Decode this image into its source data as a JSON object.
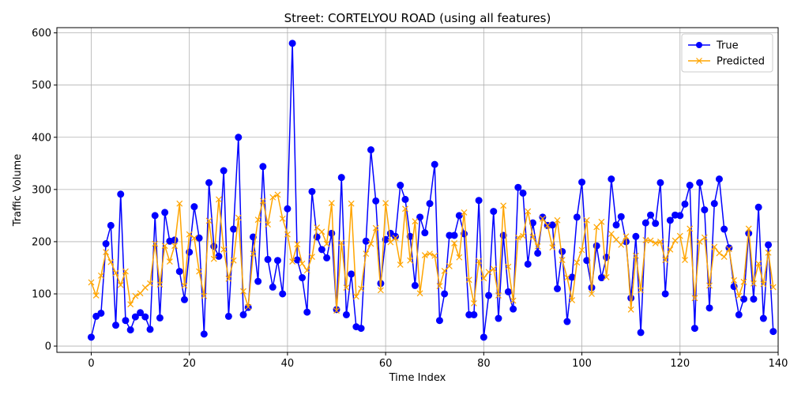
{
  "chart_data": {
    "type": "line",
    "title": "Street: CORTELYOU ROAD (using all features)",
    "xlabel": "Time Index",
    "ylabel": "Traffic Volume",
    "xlim": [
      -7,
      140
    ],
    "ylim": [
      -12,
      610
    ],
    "xticks": [
      0,
      20,
      40,
      60,
      80,
      100,
      120,
      140
    ],
    "yticks": [
      0,
      100,
      200,
      300,
      400,
      500,
      600
    ],
    "grid": true,
    "legend_position": "top-right",
    "colors": {
      "True": "#0000ff",
      "Predicted": "#ffa500"
    },
    "series": [
      {
        "name": "True",
        "marker": "circle",
        "values": [
          17,
          57,
          63,
          196,
          231,
          40,
          291,
          49,
          31,
          56,
          64,
          56,
          32,
          250,
          54,
          256,
          201,
          203,
          143,
          89,
          180,
          267,
          207,
          23,
          313,
          191,
          172,
          336,
          57,
          224,
          400,
          60,
          74,
          209,
          124,
          344,
          166,
          113,
          164,
          100,
          263,
          580,
          165,
          131,
          65,
          296,
          209,
          185,
          169,
          216,
          70,
          323,
          60,
          138,
          37,
          34,
          201,
          376,
          278,
          120,
          204,
          216,
          210,
          308,
          281,
          210,
          116,
          247,
          217,
          273,
          348,
          49,
          100,
          212,
          212,
          250,
          215,
          60,
          60,
          279,
          17,
          97,
          258,
          53,
          212,
          104,
          71,
          304,
          293,
          157,
          236,
          178,
          247,
          231,
          232,
          110,
          181,
          47,
          132,
          247,
          314,
          164,
          112,
          192,
          131,
          170,
          320,
          232,
          248,
          200,
          92,
          210,
          26,
          236,
          251,
          235,
          313,
          100,
          241,
          251,
          250,
          272,
          308,
          34,
          313,
          261,
          73,
          273,
          320,
          224,
          188,
          114,
          60,
          90,
          216,
          90,
          266,
          53,
          194,
          28
        ]
      },
      {
        "name": "Predicted",
        "marker": "x",
        "values": [
          122,
          97,
          135,
          180,
          161,
          140,
          117,
          143,
          80,
          96,
          101,
          112,
          120,
          196,
          118,
          192,
          162,
          192,
          273,
          116,
          214,
          207,
          143,
          96,
          240,
          167,
          281,
          185,
          129,
          164,
          246,
          105,
          75,
          177,
          242,
          278,
          233,
          285,
          290,
          244,
          214,
          162,
          195,
          158,
          145,
          171,
          227,
          219,
          196,
          274,
          68,
          198,
          112,
          273,
          95,
          110,
          177,
          196,
          226,
          107,
          274,
          199,
          207,
          156,
          263,
          164,
          239,
          101,
          174,
          177,
          173,
          115,
          144,
          153,
          197,
          170,
          256,
          127,
          82,
          163,
          130,
          142,
          148,
          97,
          269,
          152,
          87,
          208,
          211,
          258,
          209,
          191,
          244,
          231,
          189,
          241,
          165,
          131,
          88,
          160,
          184,
          241,
          100,
          228,
          238,
          132,
          215,
          204,
          194,
          210,
          70,
          173,
          107,
          203,
          202,
          197,
          200,
          165,
          185,
          202,
          211,
          165,
          225,
          92,
          200,
          208,
          116,
          190,
          178,
          171,
          186,
          126,
          96,
          123,
          225,
          120,
          158,
          119,
          179,
          113
        ]
      }
    ]
  }
}
